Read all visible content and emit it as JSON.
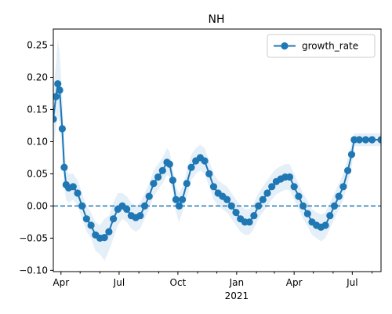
{
  "chart_data": {
    "type": "line",
    "title": "NH",
    "xlabel": "",
    "ylabel": "",
    "x_start": "2020-03-20",
    "x_end": "2021-08-15",
    "ylim": [
      -0.102,
      0.275
    ],
    "x_ticks": [
      {
        "date": "2020-04-01",
        "label": "Apr"
      },
      {
        "date": "2020-07-01",
        "label": "Jul"
      },
      {
        "date": "2020-10-01",
        "label": "Oct"
      },
      {
        "date": "2021-01-01",
        "label": "Jan"
      },
      {
        "date": "2021-04-01",
        "label": "Apr"
      },
      {
        "date": "2021-07-01",
        "label": "Jul"
      }
    ],
    "x_year_label": {
      "date": "2021-01-01",
      "label": "2021"
    },
    "y_ticks": [
      -0.1,
      -0.05,
      0.0,
      0.05,
      0.1,
      0.15,
      0.2,
      0.25
    ],
    "y_tick_labels": [
      "−0.10",
      "−0.05",
      "0.00",
      "0.05",
      "0.10",
      "0.15",
      "0.20",
      "0.25"
    ],
    "reference_line": {
      "y": 0.0,
      "style": "dashed"
    },
    "legend": {
      "position": "top-right"
    },
    "series": [
      {
        "name": "growth_rate",
        "color": "#1f77b4",
        "band_color": "#dce9f5",
        "marker": "circle",
        "points": [
          [
            "2020-03-20",
            0.135,
            0.09,
            0.18
          ],
          [
            "2020-03-24",
            0.17,
            0.12,
            0.22
          ],
          [
            "2020-03-27",
            0.19,
            0.14,
            0.26
          ],
          [
            "2020-03-30",
            0.18,
            0.13,
            0.24
          ],
          [
            "2020-04-03",
            0.12,
            0.08,
            0.17
          ],
          [
            "2020-04-06",
            0.06,
            0.03,
            0.1
          ],
          [
            "2020-04-09",
            0.033,
            0.01,
            0.06
          ],
          [
            "2020-04-13",
            0.028,
            0.005,
            0.05
          ],
          [
            "2020-04-20",
            0.03,
            0.01,
            0.05
          ],
          [
            "2020-04-27",
            0.02,
            0.0,
            0.04
          ],
          [
            "2020-05-04",
            0.0,
            -0.02,
            0.02
          ],
          [
            "2020-05-11",
            -0.02,
            -0.04,
            0.0
          ],
          [
            "2020-05-18",
            -0.03,
            -0.05,
            -0.01
          ],
          [
            "2020-05-25",
            -0.045,
            -0.07,
            -0.025
          ],
          [
            "2020-06-01",
            -0.05,
            -0.075,
            -0.03
          ],
          [
            "2020-06-08",
            -0.049,
            -0.085,
            -0.02
          ],
          [
            "2020-06-15",
            -0.04,
            -0.07,
            -0.015
          ],
          [
            "2020-06-22",
            -0.02,
            -0.05,
            0.005
          ],
          [
            "2020-06-29",
            -0.005,
            -0.03,
            0.02
          ],
          [
            "2020-07-06",
            0.0,
            -0.02,
            0.02
          ],
          [
            "2020-07-13",
            -0.005,
            -0.025,
            0.015
          ],
          [
            "2020-07-20",
            -0.015,
            -0.035,
            0.005
          ],
          [
            "2020-07-27",
            -0.018,
            -0.04,
            0.0
          ],
          [
            "2020-08-03",
            -0.015,
            -0.035,
            0.005
          ],
          [
            "2020-08-10",
            0.0,
            -0.02,
            0.02
          ],
          [
            "2020-08-17",
            0.015,
            -0.005,
            0.035
          ],
          [
            "2020-08-24",
            0.035,
            0.015,
            0.055
          ],
          [
            "2020-08-31",
            0.045,
            0.025,
            0.065
          ],
          [
            "2020-09-07",
            0.055,
            0.035,
            0.075
          ],
          [
            "2020-09-14",
            0.068,
            0.048,
            0.09
          ],
          [
            "2020-09-18",
            0.065,
            0.045,
            0.085
          ],
          [
            "2020-09-23",
            0.04,
            0.02,
            0.06
          ],
          [
            "2020-09-28",
            0.01,
            -0.01,
            0.03
          ],
          [
            "2020-10-03",
            0.0,
            -0.025,
            0.02
          ],
          [
            "2020-10-08",
            0.01,
            -0.01,
            0.03
          ],
          [
            "2020-10-15",
            0.035,
            0.015,
            0.055
          ],
          [
            "2020-10-22",
            0.06,
            0.04,
            0.08
          ],
          [
            "2020-10-29",
            0.07,
            0.05,
            0.09
          ],
          [
            "2020-11-05",
            0.075,
            0.055,
            0.095
          ],
          [
            "2020-11-12",
            0.07,
            0.05,
            0.09
          ],
          [
            "2020-11-19",
            0.05,
            0.03,
            0.07
          ],
          [
            "2020-11-26",
            0.03,
            0.01,
            0.05
          ],
          [
            "2020-12-03",
            0.02,
            0.0,
            0.04
          ],
          [
            "2020-12-10",
            0.015,
            -0.005,
            0.035
          ],
          [
            "2020-12-17",
            0.01,
            -0.01,
            0.03
          ],
          [
            "2020-12-24",
            0.0,
            -0.02,
            0.02
          ],
          [
            "2020-12-31",
            -0.01,
            -0.03,
            0.01
          ],
          [
            "2021-01-07",
            -0.02,
            -0.04,
            0.0
          ],
          [
            "2021-01-14",
            -0.025,
            -0.045,
            -0.005
          ],
          [
            "2021-01-21",
            -0.025,
            -0.045,
            -0.005
          ],
          [
            "2021-01-28",
            -0.015,
            -0.035,
            0.005
          ],
          [
            "2021-02-04",
            0.0,
            -0.02,
            0.02
          ],
          [
            "2021-02-11",
            0.01,
            -0.01,
            0.03
          ],
          [
            "2021-02-18",
            0.02,
            0.0,
            0.04
          ],
          [
            "2021-02-25",
            0.03,
            0.01,
            0.05
          ],
          [
            "2021-03-04",
            0.038,
            0.018,
            0.058
          ],
          [
            "2021-03-11",
            0.042,
            0.022,
            0.062
          ],
          [
            "2021-03-18",
            0.045,
            0.025,
            0.065
          ],
          [
            "2021-03-25",
            0.045,
            0.025,
            0.065
          ],
          [
            "2021-04-01",
            0.03,
            0.01,
            0.05
          ],
          [
            "2021-04-08",
            0.015,
            -0.005,
            0.035
          ],
          [
            "2021-04-15",
            0.0,
            -0.02,
            0.02
          ],
          [
            "2021-04-22",
            -0.012,
            -0.032,
            0.008
          ],
          [
            "2021-04-29",
            -0.025,
            -0.045,
            -0.005
          ],
          [
            "2021-05-06",
            -0.03,
            -0.05,
            -0.01
          ],
          [
            "2021-05-13",
            -0.033,
            -0.055,
            -0.013
          ],
          [
            "2021-05-20",
            -0.03,
            -0.05,
            -0.01
          ],
          [
            "2021-05-27",
            -0.015,
            -0.035,
            0.005
          ],
          [
            "2021-06-03",
            0.0,
            -0.02,
            0.02
          ],
          [
            "2021-06-10",
            0.015,
            -0.005,
            0.035
          ],
          [
            "2021-06-17",
            0.03,
            0.01,
            0.05
          ],
          [
            "2021-06-24",
            0.055,
            0.035,
            0.075
          ],
          [
            "2021-06-30",
            0.08,
            0.06,
            0.1
          ],
          [
            "2021-07-04",
            0.103,
            0.093,
            0.113
          ],
          [
            "2021-07-12",
            0.103,
            0.093,
            0.113
          ],
          [
            "2021-07-22",
            0.103,
            0.093,
            0.113
          ],
          [
            "2021-08-01",
            0.103,
            0.093,
            0.113
          ],
          [
            "2021-08-15",
            0.103,
            0.093,
            0.113
          ]
        ]
      }
    ]
  }
}
